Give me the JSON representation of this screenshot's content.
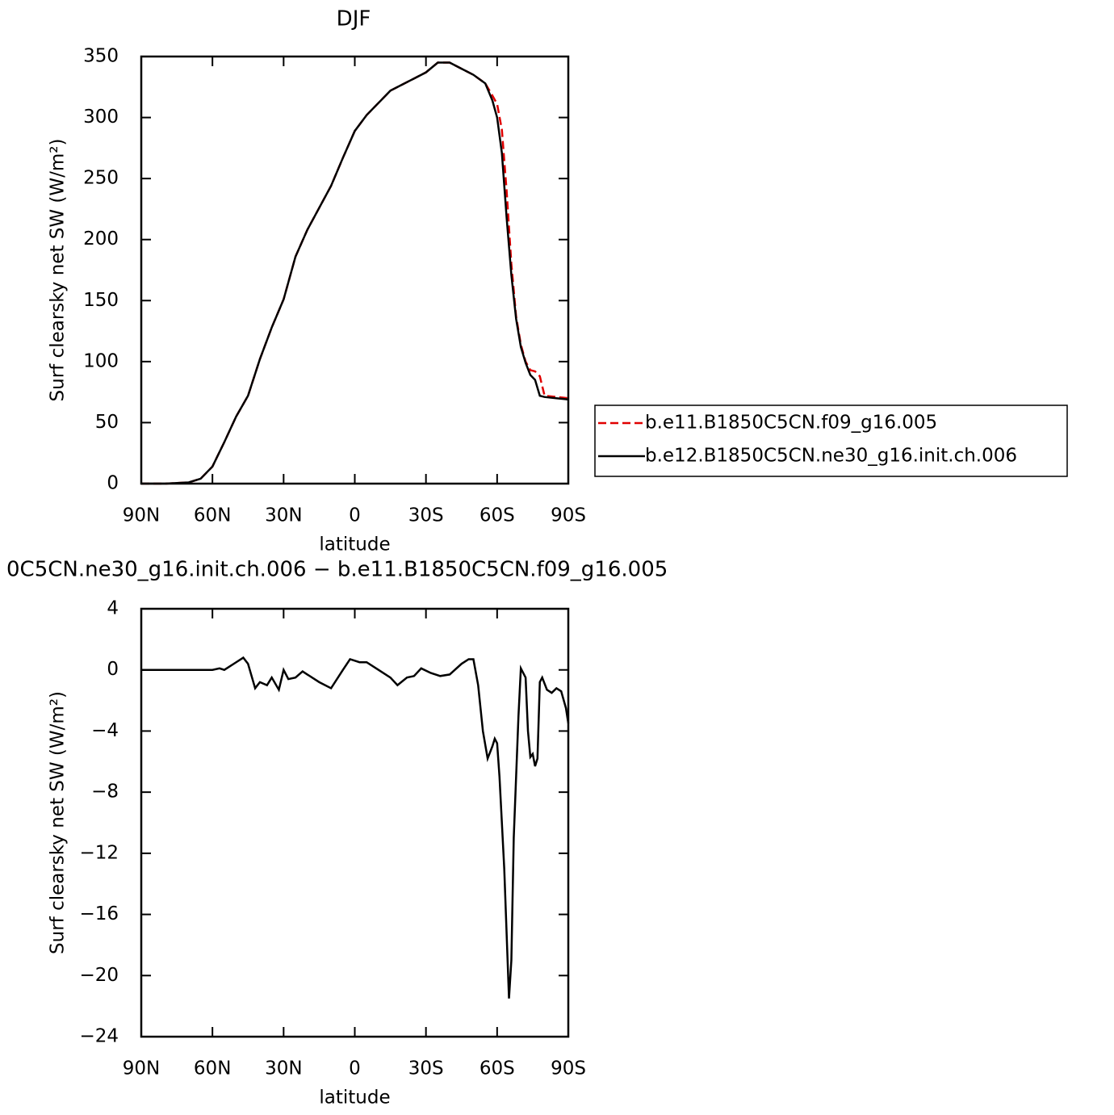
{
  "chart_data": [
    {
      "type": "line",
      "title": "DJF",
      "xlabel": "latitude",
      "ylabel": "Surf clearsky net SW (W/m²)",
      "x": [
        90,
        85,
        80,
        75,
        70,
        65,
        60,
        55,
        50,
        45,
        40,
        35,
        30,
        25,
        20,
        15,
        10,
        5,
        0,
        -5,
        -10,
        -15,
        -20,
        -25,
        -30,
        -35,
        -40,
        -45,
        -50,
        -55,
        -58,
        -60,
        -62,
        -64,
        -66,
        -68,
        -70,
        -72,
        -74,
        -76,
        -78,
        -80,
        -85,
        -90
      ],
      "series": [
        {
          "name": "b.e11.B1850C5CN.f09_g16.005",
          "color": "#e00000",
          "linestyle": "dashed",
          "values": [
            0,
            0,
            0,
            0.5,
            1,
            4,
            14,
            34,
            55,
            72,
            102,
            128,
            151,
            186,
            208,
            226,
            244,
            267,
            289,
            302,
            312,
            322,
            327,
            332,
            337,
            345,
            345,
            340,
            335,
            328,
            318,
            311,
            290,
            240,
            180,
            137,
            114,
            100,
            93,
            92,
            88,
            72,
            71,
            70
          ]
        },
        {
          "name": "b.e12.B1850C5CN.ne30_g16.init.ch.006",
          "color": "#000000",
          "linestyle": "solid",
          "values": [
            0,
            0,
            0,
            0.5,
            1,
            4,
            14,
            34,
            55,
            72,
            102,
            128,
            151,
            186,
            208,
            226,
            244,
            267,
            289,
            302,
            312,
            322,
            327,
            332,
            337,
            345,
            345,
            340,
            335,
            328,
            314,
            300,
            271,
            218,
            171,
            135,
            112,
            99,
            89,
            85,
            72,
            71,
            70,
            69
          ]
        }
      ],
      "xlim": [
        90,
        -90
      ],
      "xticks": [
        {
          "value": 90,
          "label": "90N"
        },
        {
          "value": 60,
          "label": "60N"
        },
        {
          "value": 30,
          "label": "30N"
        },
        0,
        {
          "value": -30,
          "label": "30S"
        },
        {
          "value": -60,
          "label": "60S"
        },
        {
          "value": -90,
          "label": "90S"
        }
      ],
      "ylim": [
        0,
        350
      ],
      "yticks": [
        0,
        50,
        100,
        150,
        200,
        250,
        300,
        350
      ],
      "legend": "right"
    },
    {
      "type": "line",
      "title": "0C5CN.ne30_g16.init.ch.006 − b.e11.B1850C5CN.f09_g16.005",
      "xlabel": "latitude",
      "ylabel": "Surf clearsky net SW (W/m²)",
      "x": [
        90,
        80,
        70,
        65,
        60,
        57,
        55,
        50,
        47,
        45,
        42,
        40,
        37,
        35,
        32,
        30,
        28,
        25,
        22,
        20,
        15,
        10,
        5,
        2,
        0,
        -2,
        -5,
        -10,
        -15,
        -18,
        -22,
        -25,
        -28,
        -32,
        -36,
        -40,
        -45,
        -48,
        -50,
        -52,
        -54,
        -56,
        -58,
        -59,
        -60,
        -61,
        -63,
        -65,
        -66,
        -67,
        -69,
        -70,
        -72,
        -73,
        -74,
        -75,
        -76,
        -77,
        -78,
        -79,
        -81,
        -83,
        -85,
        -87,
        -89,
        -90
      ],
      "series": [
        {
          "color": "#000000",
          "linestyle": "solid",
          "values": [
            0,
            0,
            0,
            0,
            0,
            0.1,
            0,
            0.5,
            0.8,
            0.4,
            -1.2,
            -0.8,
            -1,
            -0.5,
            -1.3,
            0,
            -0.6,
            -0.5,
            -0.1,
            -0.3,
            -0.8,
            -1.2,
            0,
            0.7,
            0.6,
            0.5,
            0.5,
            0,
            -0.5,
            -1,
            -0.5,
            -0.4,
            0.1,
            -0.2,
            -0.4,
            -0.3,
            0.4,
            0.7,
            0.7,
            -1,
            -4,
            -5.8,
            -5,
            -4.5,
            -4.8,
            -7,
            -13,
            -21.5,
            -19,
            -11,
            -3,
            0.1,
            -0.5,
            -4,
            -5.7,
            -5.5,
            -6.3,
            -5.8,
            -0.8,
            -0.5,
            -1.3,
            -1.5,
            -1.2,
            -1.4,
            -2.5,
            -3.5
          ]
        }
      ],
      "xlim": [
        90,
        -90
      ],
      "xticks": [
        {
          "value": 90,
          "label": "90N"
        },
        {
          "value": 60,
          "label": "60N"
        },
        {
          "value": 30,
          "label": "30N"
        },
        0,
        {
          "value": -30,
          "label": "30S"
        },
        {
          "value": -60,
          "label": "60S"
        },
        {
          "value": -90,
          "label": "90S"
        }
      ],
      "ylim": [
        -24,
        4
      ],
      "yticks": [
        {
          "value": -24,
          "label": "−24"
        },
        {
          "value": -20,
          "label": "−20"
        },
        {
          "value": -16,
          "label": "−16"
        },
        {
          "value": -12,
          "label": "−12"
        },
        {
          "value": -8,
          "label": "−8"
        },
        {
          "value": -4,
          "label": "−4"
        },
        0,
        4
      ]
    }
  ]
}
